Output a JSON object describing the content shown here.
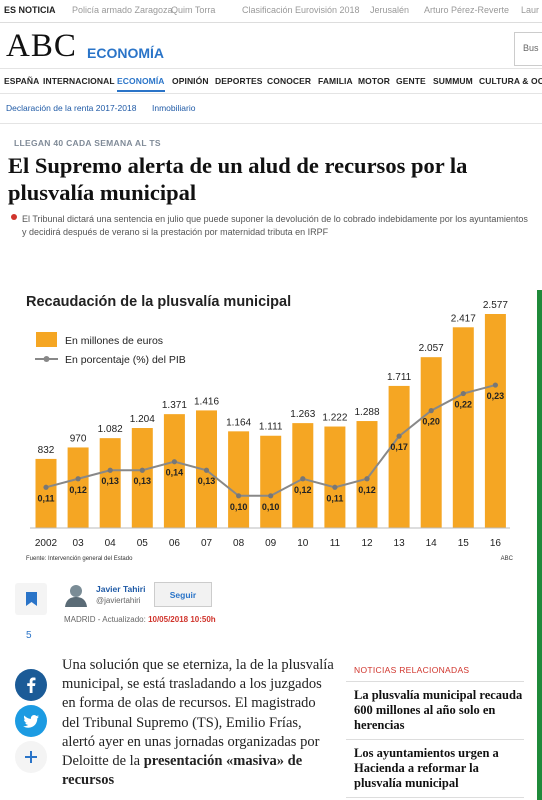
{
  "trending": {
    "lead": "ES NOTICIA",
    "items": [
      "Policía armado Zaragoza",
      "Quim Torra",
      "Clasificación Eurovisión 2018",
      "Jerusalén",
      "Arturo Pérez-Reverte",
      "Laur"
    ]
  },
  "header": {
    "logo": "ABC",
    "section": "ECONOMÍA",
    "search_placeholder": "Bus"
  },
  "nav": {
    "items": [
      "ESPAÑA",
      "INTERNACIONAL",
      "ECONOMÍA",
      "OPINIÓN",
      "DEPORTES",
      "CONOCER",
      "FAMILIA",
      "MOTOR",
      "GENTE",
      "SUMMUM",
      "CULTURA & OC"
    ],
    "active_index": 2
  },
  "subnav": {
    "items": [
      "Declaración de la renta 2017-2018",
      "Inmobiliario"
    ]
  },
  "article": {
    "kicker": "LLEGAN 40 CADA SEMANA AL TS",
    "headline": "El Supremo alerta de un alud de recursos por la plusvalía municipal",
    "dek": "El Tribunal dictará una sentencia en julio que puede suponer la devolución de lo cobrado indebidamente por los ayuntamientos y decidirá después de verano si la prestación por maternidad tributa en IRPF",
    "author_name": "Javier Tahiri",
    "author_handle": "@javiertahiri",
    "follow_label": "Seguir",
    "meta_place": "MADRID",
    "meta_updated": "- Actualizado:",
    "meta_date": "10/05/2018 10:50h",
    "share_count": "5",
    "body_plain": "Una solución que se eterniza, la de la plusvalía municipal, se está trasladando a los juzgados en forma de olas de recursos. El magistrado del Tribunal Supremo (TS), Emilio Frías, alertó ayer en unas jornadas organizadas por Deloitte de la",
    "body_bold": "presentación «masiva» de recursos"
  },
  "related": {
    "title": "NOTICIAS RELACIONADAS",
    "items": [
      "La plusvalía municipal recauda 600 millones al año solo en herencias",
      "Los ayuntamientos urgen a Hacienda a reformar la plusvalía municipal"
    ]
  },
  "colors": {
    "accent": "#2a74c8",
    "bar": "#f5a623",
    "line": "#888888",
    "red": "#d0342c"
  },
  "icons": [
    "bookmark-icon",
    "facebook-icon",
    "twitter-icon",
    "plus-icon",
    "avatar-icon"
  ],
  "chart_data": {
    "type": "bar",
    "title": "Recaudación de la plusvalía municipal",
    "categories": [
      "2002",
      "03",
      "04",
      "05",
      "06",
      "07",
      "08",
      "09",
      "10",
      "11",
      "12",
      "13",
      "14",
      "15",
      "16"
    ],
    "series": [
      {
        "name": "En millones de euros",
        "type": "bar",
        "values": [
          832,
          970,
          1082,
          1204,
          1371,
          1416,
          1164,
          1111,
          1263,
          1222,
          1288,
          1711,
          2057,
          2417,
          2577
        ],
        "labels": [
          "832",
          "970",
          "1.082",
          "1.204",
          "1.371",
          "1.416",
          "1.164",
          "1.111",
          "1.263",
          "1.222",
          "1.288",
          "1.711",
          "2.057",
          "2.417",
          "2.577"
        ]
      },
      {
        "name": "En porcentaje (%) del PIB",
        "type": "line",
        "values": [
          0.11,
          0.12,
          0.13,
          0.13,
          0.14,
          0.13,
          0.1,
          0.1,
          0.12,
          0.11,
          0.12,
          0.17,
          0.2,
          0.22,
          0.23
        ],
        "labels": [
          "0,11",
          "0,12",
          "0,13",
          "0,13",
          "0,14",
          "0,13",
          "0,10",
          "0,10",
          "0,12",
          "0,11",
          "0,12",
          "0,17",
          "0,20",
          "0,22",
          "0,23"
        ]
      }
    ],
    "source": "Fuente: Intervención general del Estado",
    "credit": "ABC",
    "legend": "top-left",
    "grid": false
  }
}
